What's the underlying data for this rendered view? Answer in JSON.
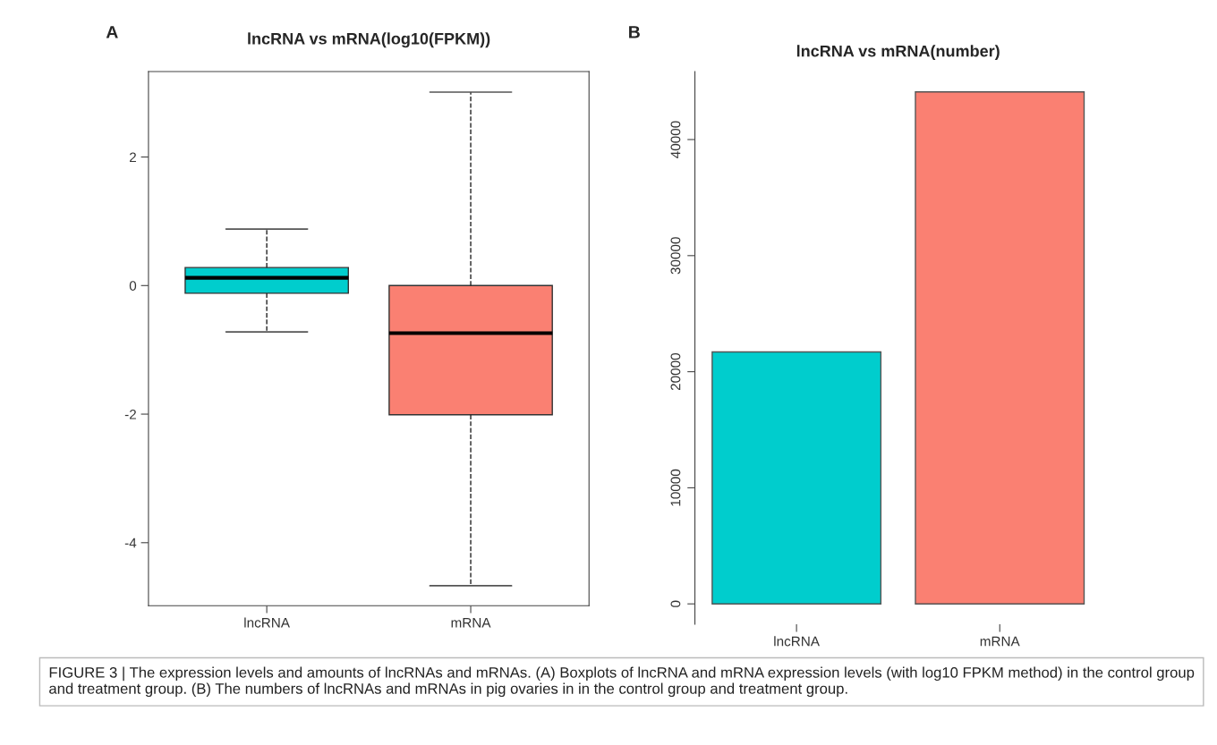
{
  "chart_data": [
    {
      "type": "box",
      "title": "lncRNA vs mRNA(log10(FPKM))",
      "categories": [
        "lncRNA",
        "mRNA"
      ],
      "colors": [
        "#00cdcd",
        "#fa8072"
      ],
      "boxes": [
        {
          "low": -0.72,
          "q1": -0.12,
          "median": 0.12,
          "q3": 0.28,
          "high": 0.88
        },
        {
          "low": -4.67,
          "q1": -2.01,
          "median": -0.74,
          "q3": 0.0,
          "high": 3.01
        }
      ],
      "ylim": [
        -4.98,
        3.33
      ],
      "yticks": [
        -4,
        -2,
        0,
        2
      ],
      "grid": false,
      "line_style": "dashed",
      "annotations": [
        "A",
        "FIGURE 3 | The expression levels and amounts of lncRNAs and mRNAs. (A) Boxplots of lncRNA and mRNA expression levels (with log10 FPKM method) in the control group and treatment group. (B) The numbers of lncRNAs and mRNAs in pig ovaries in in the control group and treatment group."
      ]
    },
    {
      "type": "bar",
      "title": "lncRNA vs mRNA(number)",
      "categories": [
        "lncRNA",
        "mRNA"
      ],
      "colors": [
        "#00cdcd",
        "#fa8072"
      ],
      "values": [
        21700,
        44100
      ],
      "ylim": [
        -1760,
        45860
      ],
      "yticks": [
        0,
        10000,
        20000,
        30000,
        40000
      ],
      "grid": false,
      "annotations": [
        "B"
      ]
    }
  ]
}
